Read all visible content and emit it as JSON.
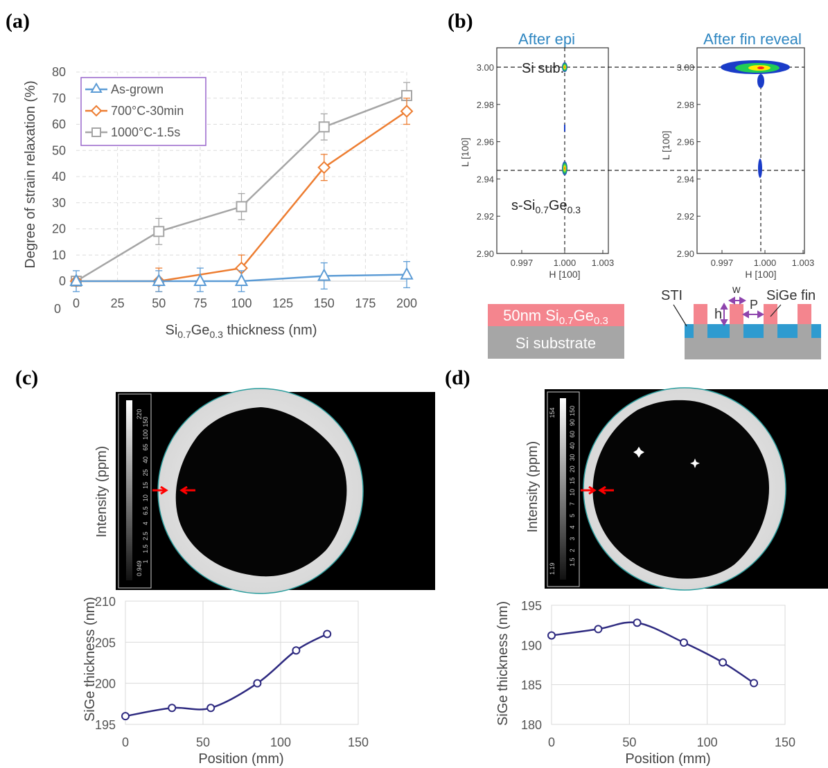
{
  "panels": {
    "a": "(a)",
    "b": "(b)",
    "c": "(c)",
    "d": "(d)"
  },
  "colors": {
    "as_grown": "#5b9bd5",
    "c700": "#ed7d31",
    "c1000": "#a5a5a5",
    "legend_border": "#9966cc",
    "purple_line": "#2e2a80",
    "epi_title": "#2e86c1",
    "sige_pink": "#f4858e",
    "si_gray": "#a6a6a6",
    "sti_blue": "#2e9bd0",
    "arrow_purple": "#8e44ad",
    "marker_red": "#ff0000"
  },
  "chart_data": [
    {
      "id": "a",
      "type": "line",
      "xlabel_parts": [
        "Si",
        "0.7",
        "Ge",
        "0.3",
        " thickness (nm)"
      ],
      "ylabel": "Degree of strain relaxation (%)",
      "xlim": [
        0,
        200
      ],
      "ylim": [
        0,
        80
      ],
      "xticks": [
        "0",
        "25",
        "50",
        "75",
        "100",
        "125",
        "150",
        "175",
        "200"
      ],
      "yticks": [
        "0",
        "10",
        "20",
        "30",
        "40",
        "50",
        "60",
        "70",
        "80"
      ],
      "grid": "dashed",
      "legend_position": "top-left",
      "series": [
        {
          "name": "As-grown",
          "marker": "triangle",
          "x": [
            0,
            50,
            75,
            100,
            150,
            200
          ],
          "y": [
            0,
            0,
            0,
            0,
            2,
            2.5
          ],
          "err": [
            4,
            4,
            5,
            4,
            5,
            5
          ]
        },
        {
          "name": "700°C-30min",
          "marker": "diamond",
          "x": [
            0,
            50,
            100,
            150,
            200
          ],
          "y": [
            0,
            0,
            5,
            43.5,
            65
          ],
          "err": [
            0,
            5,
            5,
            5,
            5
          ]
        },
        {
          "name": "1000°C-1.5s",
          "marker": "square",
          "x": [
            0,
            50,
            100,
            150,
            200
          ],
          "y": [
            0,
            19,
            28.5,
            59,
            71
          ],
          "err": [
            0,
            5,
            5,
            5,
            5
          ]
        }
      ]
    },
    {
      "id": "b",
      "type": "heatmap",
      "subplots": [
        {
          "title": "After epi",
          "xticks": [
            "0.997",
            "1.000",
            "1.003"
          ],
          "yticks": [
            "3.00",
            "2.98",
            "2.96",
            "2.94",
            "2.92",
            "2.90"
          ],
          "xlabel": "H [100]",
          "ylabel": "L [100]",
          "xlim": [
            0.9955,
            1.003
          ],
          "ylim": [
            2.9,
            3.01
          ]
        },
        {
          "title": "After fin reveal",
          "xticks": [
            "0.997",
            "1.000",
            "1.003"
          ],
          "yticks": [
            "3.00",
            "2.98",
            "2.96",
            "2.94",
            "2.92",
            "2.90"
          ],
          "xlabel": "H [100]",
          "ylabel": "L [100]",
          "xlim": [
            0.9955,
            1.003
          ],
          "ylim": [
            2.9,
            3.01
          ]
        }
      ],
      "peaks": [
        {
          "name": "Si sub.",
          "H": 1.0,
          "L": 3.0
        },
        {
          "name_parts": [
            "s-Si",
            "0.7",
            "Ge",
            "0.3"
          ],
          "H": 1.0,
          "L": 2.945
        }
      ],
      "schematics": {
        "planar_top_parts": [
          "50nm Si",
          "0.7",
          "Ge",
          "0.3"
        ],
        "planar_bottom": "Si substrate",
        "fin_labels": {
          "sti": "STI",
          "w": "w",
          "h": "h",
          "p": "P",
          "fin": "SiGe fin"
        }
      }
    },
    {
      "id": "c",
      "type": "line",
      "map_ylabel": "Intensity (ppm)",
      "scale_max": "220",
      "scale_min": "0.949",
      "scale_ticks": [
        "150",
        "100",
        "65",
        "40",
        "25",
        "15",
        "10",
        "6.5",
        "4",
        "2.5",
        "1.5",
        "1"
      ],
      "xlabel": "Position (mm)",
      "ylabel": "SiGe thickness (nm)",
      "xlim": [
        0,
        150
      ],
      "ylim": [
        195,
        210
      ],
      "xticks": [
        "0",
        "50",
        "100",
        "150"
      ],
      "yticks": [
        "195",
        "200",
        "205",
        "210"
      ],
      "x": [
        0,
        30,
        55,
        85,
        110,
        130
      ],
      "y": [
        196,
        197,
        197,
        200,
        204,
        206
      ]
    },
    {
      "id": "d",
      "type": "line",
      "map_ylabel": "Intensity (ppm)",
      "scale_max": "154",
      "scale_min": "1.19",
      "scale_ticks": [
        "150",
        "90",
        "60",
        "40",
        "30",
        "20",
        "15",
        "10",
        "7",
        "5",
        "4",
        "3",
        "2",
        "1.5"
      ],
      "xlabel": "Position (mm)",
      "ylabel": "SiGe thickness (nm)",
      "xlim": [
        0,
        150
      ],
      "ylim": [
        180,
        195
      ],
      "xticks": [
        "0",
        "50",
        "100",
        "150"
      ],
      "yticks": [
        "180",
        "185",
        "190",
        "195"
      ],
      "x": [
        0,
        30,
        55,
        85,
        110,
        130
      ],
      "y": [
        191.2,
        192,
        192.8,
        190.3,
        187.8,
        185.2
      ]
    }
  ]
}
